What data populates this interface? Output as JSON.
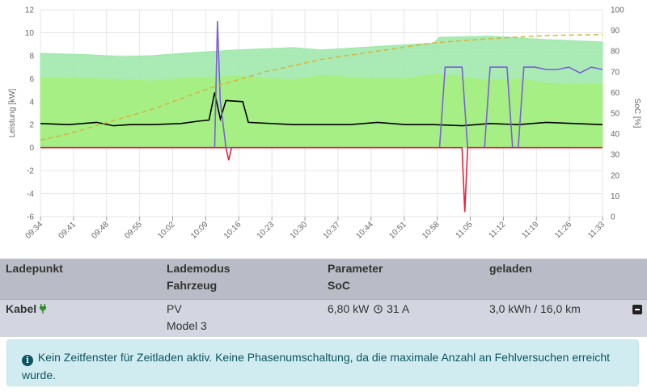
{
  "chart_data": {
    "type": "area",
    "x_tick_labels": [
      "09:34",
      "09:41",
      "09:48",
      "09:55",
      "10:02",
      "10:09",
      "10:16",
      "10:23",
      "10:30",
      "10:37",
      "10:44",
      "10:51",
      "10:58",
      "11:05",
      "11:12",
      "11:19",
      "11:26",
      "11:33"
    ],
    "y_left": {
      "label": "Leistung [kW]",
      "min": -6,
      "max": 12,
      "ticks": [
        -6,
        -4,
        -2,
        0,
        2,
        4,
        6,
        8,
        10,
        12
      ]
    },
    "y_right": {
      "label": "SoC [%]",
      "min": 0,
      "max": 100,
      "ticks": [
        0,
        10,
        20,
        30,
        40,
        50,
        60,
        70,
        80,
        90,
        100
      ]
    },
    "grid": true,
    "series": [
      {
        "color": "#9be7a8",
        "axis": "left",
        "style": "area",
        "points": [
          [
            0,
            8.2
          ],
          [
            0.08,
            8.1
          ],
          [
            0.15,
            7.9
          ],
          [
            0.2,
            8.0
          ],
          [
            0.25,
            8.2
          ],
          [
            0.35,
            8.5
          ],
          [
            0.45,
            8.7
          ],
          [
            0.5,
            8.5
          ],
          [
            0.6,
            8.8
          ],
          [
            0.7,
            9.1
          ],
          [
            0.71,
            9.6
          ],
          [
            0.8,
            9.7
          ],
          [
            0.9,
            9.4
          ],
          [
            1,
            9.2
          ]
        ]
      },
      {
        "color": "#a6f07c",
        "axis": "left",
        "style": "area",
        "points": [
          [
            0,
            6.1
          ],
          [
            0.1,
            6.0
          ],
          [
            0.2,
            5.8
          ],
          [
            0.27,
            6.1
          ],
          [
            0.35,
            6.2
          ],
          [
            0.45,
            5.9
          ],
          [
            0.5,
            6.3
          ],
          [
            0.58,
            6.0
          ],
          [
            0.65,
            6.0
          ],
          [
            0.7,
            6.4
          ],
          [
            0.75,
            6.2
          ],
          [
            0.8,
            5.8
          ],
          [
            0.85,
            6.0
          ],
          [
            0.9,
            5.6
          ],
          [
            1,
            5.5
          ]
        ]
      },
      {
        "color": "#000000",
        "axis": "left",
        "style": "line",
        "points": [
          [
            0,
            2.1
          ],
          [
            0.05,
            2.0
          ],
          [
            0.1,
            2.2
          ],
          [
            0.13,
            1.9
          ],
          [
            0.16,
            2.0
          ],
          [
            0.2,
            2.0
          ],
          [
            0.25,
            2.1
          ],
          [
            0.28,
            2.3
          ],
          [
            0.3,
            2.4
          ],
          [
            0.31,
            4.8
          ],
          [
            0.32,
            2.5
          ],
          [
            0.33,
            4.1
          ],
          [
            0.36,
            4.0
          ],
          [
            0.37,
            2.2
          ],
          [
            0.45,
            2.0
          ],
          [
            0.5,
            2.0
          ],
          [
            0.55,
            2.0
          ],
          [
            0.6,
            2.2
          ],
          [
            0.65,
            2.0
          ],
          [
            0.7,
            2.0
          ],
          [
            0.75,
            1.9
          ],
          [
            0.8,
            2.1
          ],
          [
            0.85,
            2.0
          ],
          [
            0.9,
            2.2
          ],
          [
            0.95,
            2.1
          ],
          [
            1,
            2.0
          ]
        ]
      },
      {
        "color": "#7b5fd8",
        "axis": "left",
        "style": "line",
        "points": [
          [
            0,
            0
          ],
          [
            0.31,
            0
          ],
          [
            0.315,
            11.0
          ],
          [
            0.32,
            4.0
          ],
          [
            0.33,
            0
          ],
          [
            0.71,
            0
          ],
          [
            0.72,
            7.0
          ],
          [
            0.75,
            7.0
          ],
          [
            0.76,
            0
          ],
          [
            0.79,
            0
          ],
          [
            0.8,
            7.0
          ],
          [
            0.83,
            7.0
          ],
          [
            0.84,
            0
          ],
          [
            0.85,
            0
          ],
          [
            0.86,
            7.0
          ],
          [
            0.88,
            7.0
          ],
          [
            0.9,
            6.8
          ],
          [
            0.92,
            6.8
          ],
          [
            0.94,
            7.0
          ],
          [
            0.96,
            6.5
          ],
          [
            0.98,
            7.0
          ],
          [
            1,
            6.8
          ]
        ]
      },
      {
        "color": "#d4b43a",
        "axis": "right",
        "style": "dashed",
        "points": [
          [
            0,
            37
          ],
          [
            0.05,
            40
          ],
          [
            0.1,
            44
          ],
          [
            0.2,
            52
          ],
          [
            0.3,
            62
          ],
          [
            0.4,
            70
          ],
          [
            0.5,
            76
          ],
          [
            0.6,
            80
          ],
          [
            0.7,
            84
          ],
          [
            0.8,
            86
          ],
          [
            0.9,
            87.5
          ],
          [
            1,
            88
          ]
        ]
      },
      {
        "color": "#e8233a",
        "axis": "left",
        "style": "line",
        "points": [
          [
            0,
            0
          ],
          [
            0.33,
            0
          ],
          [
            0.335,
            -1.1
          ],
          [
            0.34,
            0
          ],
          [
            0.75,
            0
          ],
          [
            0.755,
            -5.6
          ],
          [
            0.76,
            0
          ],
          [
            1,
            0
          ]
        ]
      }
    ]
  },
  "table": {
    "headers": {
      "col1": "Ladepunkt",
      "col2_line1": "Lademodus",
      "col2_line2": "Fahrzeug",
      "col3_line1": "Parameter",
      "col3_line2": "SoC",
      "col4": "geladen"
    },
    "row": {
      "ladepunkt": "Kabel",
      "lademodus": "PV",
      "fahrzeug": "Model 3",
      "parameter_power": "6,80 kW",
      "parameter_current": "31 A",
      "geladen": "3,0 kWh / 16,0 km"
    }
  },
  "alert": {
    "text": "Kein Zeitfenster für Zeitladen aktiv. Keine Phasenumschaltung, da die maximale Anzahl an Fehlversuchen erreicht wurde."
  }
}
